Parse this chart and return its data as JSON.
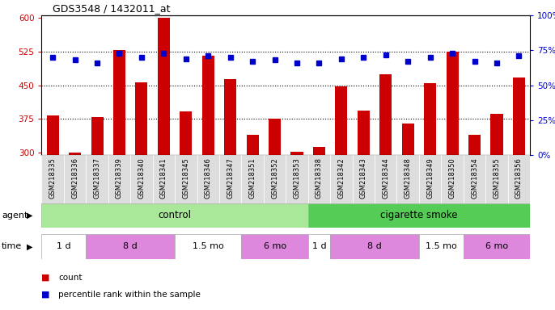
{
  "title": "GDS3548 / 1432011_at",
  "samples": [
    "GSM218335",
    "GSM218336",
    "GSM218337",
    "GSM218339",
    "GSM218340",
    "GSM218341",
    "GSM218345",
    "GSM218346",
    "GSM218347",
    "GSM218351",
    "GSM218352",
    "GSM218353",
    "GSM218338",
    "GSM218342",
    "GSM218343",
    "GSM218344",
    "GSM218348",
    "GSM218349",
    "GSM218350",
    "GSM218354",
    "GSM218355",
    "GSM218356"
  ],
  "counts": [
    383,
    300,
    379,
    528,
    457,
    600,
    392,
    516,
    464,
    340,
    376,
    303,
    313,
    447,
    393,
    474,
    365,
    455,
    524,
    340,
    387,
    468
  ],
  "percentile_ranks": [
    70,
    68,
    66,
    73,
    70,
    73,
    69,
    71,
    70,
    67,
    68,
    66,
    66,
    69,
    70,
    72,
    67,
    70,
    73,
    67,
    66,
    71
  ],
  "ylim_left": [
    295,
    605
  ],
  "ylim_right": [
    0,
    100
  ],
  "yticks_left": [
    300,
    375,
    450,
    525,
    600
  ],
  "yticks_right": [
    0,
    25,
    50,
    75,
    100
  ],
  "bar_color": "#cc0000",
  "dot_color": "#0000cc",
  "bar_bottom": 295,
  "agent_control_label": "control",
  "agent_smoke_label": "cigarette smoke",
  "agent_label": "agent",
  "time_label": "time",
  "agent_control_color": "#aae899",
  "agent_smoke_color": "#55cc55",
  "time_white": "#ffffff",
  "time_purple": "#dd88dd",
  "legend_count_label": "count",
  "legend_pct_label": "percentile rank within the sample",
  "tick_color_left": "#cc0000",
  "tick_color_right": "#0000cc",
  "time_blocks": [
    [
      0,
      2,
      "1 d",
      "#ffffff"
    ],
    [
      2,
      6,
      "8 d",
      "#dd88dd"
    ],
    [
      6,
      9,
      "1.5 mo",
      "#ffffff"
    ],
    [
      9,
      12,
      "6 mo",
      "#dd88dd"
    ],
    [
      12,
      13,
      "1 d",
      "#ffffff"
    ],
    [
      13,
      17,
      "8 d",
      "#dd88dd"
    ],
    [
      17,
      19,
      "1.5 mo",
      "#ffffff"
    ],
    [
      19,
      22,
      "6 mo",
      "#dd88dd"
    ]
  ]
}
